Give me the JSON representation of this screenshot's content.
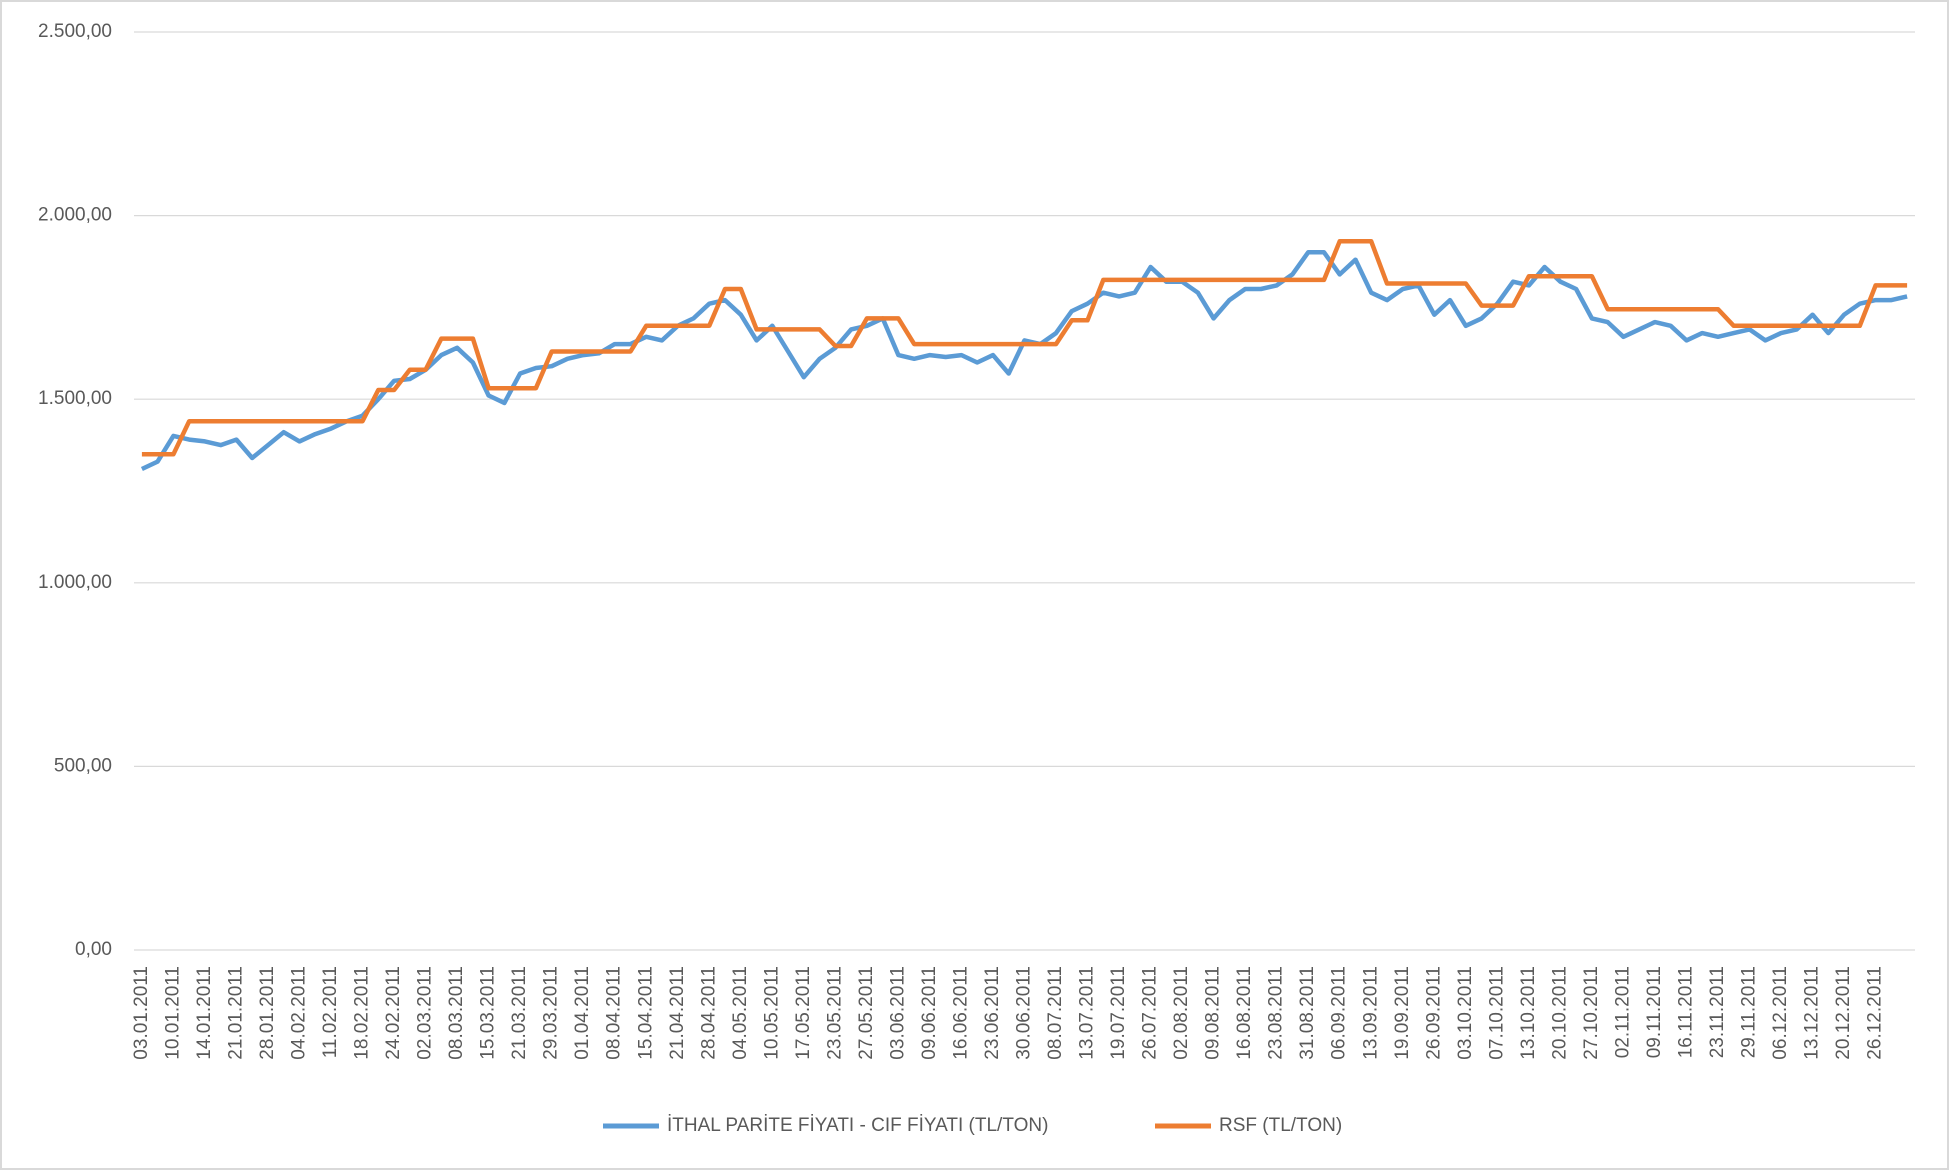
{
  "chart_data": {
    "type": "line",
    "categories": [
      "03.01.2011",
      null,
      "10.01.2011",
      null,
      "14.01.2011",
      null,
      "21.01.2011",
      null,
      "28.01.2011",
      null,
      "04.02.2011",
      null,
      "11.02.2011",
      null,
      "18.02.2011",
      null,
      "24.02.2011",
      null,
      "02.03.2011",
      null,
      "08.03.2011",
      null,
      "15.03.2011",
      null,
      "21.03.2011",
      null,
      "29.03.2011",
      null,
      "01.04.2011",
      null,
      "08.04.2011",
      null,
      "15.04.2011",
      null,
      "21.04.2011",
      null,
      "28.04.2011",
      null,
      "04.05.2011",
      null,
      "10.05.2011",
      null,
      "17.05.2011",
      null,
      "23.05.2011",
      null,
      "27.05.2011",
      null,
      "03.06.2011",
      null,
      "09.06.2011",
      null,
      "16.06.2011",
      null,
      "23.06.2011",
      null,
      "30.06.2011",
      null,
      "08.07.2011",
      null,
      "13.07.2011",
      null,
      "19.07.2011",
      null,
      "26.07.2011",
      null,
      "02.08.2011",
      null,
      "09.08.2011",
      null,
      "16.08.2011",
      null,
      "23.08.2011",
      null,
      "31.08.2011",
      null,
      "06.09.2011",
      null,
      "13.09.2011",
      null,
      "19.09.2011",
      null,
      "26.09.2011",
      null,
      "03.10.2011",
      null,
      "07.10.2011",
      null,
      "13.10.2011",
      null,
      "20.10.2011",
      null,
      "27.10.2011",
      null,
      "02.11.2011",
      null,
      "09.11.2011",
      null,
      "16.11.2011",
      null,
      "23.11.2011",
      null,
      "29.11.2011",
      null,
      "06.12.2011",
      null,
      "13.12.2011",
      null,
      "20.12.2011",
      null,
      "26.12.2011",
      null,
      null
    ],
    "series": [
      {
        "name": "İTHAL PARİTE FİYATI - CIF FİYATI (TL/TON)",
        "color": "#5b9bd5",
        "values": [
          1310,
          1330,
          1400,
          1390,
          1385,
          1375,
          1390,
          1340,
          1375,
          1410,
          1385,
          1405,
          1420,
          1440,
          1455,
          1500,
          1550,
          1555,
          1580,
          1620,
          1640,
          1600,
          1510,
          1490,
          1570,
          1585,
          1590,
          1610,
          1620,
          1625,
          1650,
          1650,
          1670,
          1660,
          1700,
          1720,
          1760,
          1770,
          1730,
          1660,
          1700,
          1630,
          1560,
          1610,
          1640,
          1690,
          1700,
          1720,
          1620,
          1610,
          1620,
          1615,
          1620,
          1600,
          1620,
          1570,
          1660,
          1650,
          1680,
          1740,
          1760,
          1790,
          1780,
          1790,
          1860,
          1820,
          1820,
          1790,
          1720,
          1770,
          1800,
          1800,
          1810,
          1840,
          1900,
          1900,
          1840,
          1880,
          1790,
          1770,
          1800,
          1810,
          1730,
          1770,
          1700,
          1720,
          1760,
          1820,
          1810,
          1860,
          1820,
          1800,
          1720,
          1710,
          1670,
          1690,
          1710,
          1700,
          1660,
          1680,
          1670,
          1680,
          1690,
          1660,
          1680,
          1690,
          1730,
          1680,
          1730,
          1760,
          1770,
          1770,
          1780
        ]
      },
      {
        "name": "RSF (TL/TON)",
        "color": "#ed7d31",
        "values": [
          1350,
          1350,
          1350,
          1440,
          1440,
          1440,
          1440,
          1440,
          1440,
          1440,
          1440,
          1440,
          1440,
          1440,
          1440,
          1525,
          1525,
          1580,
          1580,
          1665,
          1665,
          1665,
          1530,
          1530,
          1530,
          1530,
          1630,
          1630,
          1630,
          1630,
          1630,
          1630,
          1700,
          1700,
          1700,
          1700,
          1700,
          1800,
          1800,
          1690,
          1690,
          1690,
          1690,
          1690,
          1645,
          1645,
          1720,
          1720,
          1720,
          1650,
          1650,
          1650,
          1650,
          1650,
          1650,
          1650,
          1650,
          1650,
          1650,
          1715,
          1715,
          1825,
          1825,
          1825,
          1825,
          1825,
          1825,
          1825,
          1825,
          1825,
          1825,
          1825,
          1825,
          1825,
          1825,
          1825,
          1930,
          1930,
          1930,
          1815,
          1815,
          1815,
          1815,
          1815,
          1815,
          1755,
          1755,
          1755,
          1835,
          1835,
          1835,
          1835,
          1835,
          1745,
          1745,
          1745,
          1745,
          1745,
          1745,
          1745,
          1745,
          1700,
          1700,
          1700,
          1700,
          1700,
          1700,
          1700,
          1700,
          1700,
          1810,
          1810,
          1810
        ]
      }
    ],
    "ylim": [
      0,
      2500
    ],
    "yticks": [
      {
        "value": 0,
        "label": "0,00"
      },
      {
        "value": 500,
        "label": "500,00"
      },
      {
        "value": 1000,
        "label": "1.000,00"
      },
      {
        "value": 1500,
        "label": "1.500,00"
      },
      {
        "value": 2000,
        "label": "2.000,00"
      },
      {
        "value": 2500,
        "label": "2.500,00"
      }
    ],
    "grid": true,
    "legend": "bottom"
  }
}
